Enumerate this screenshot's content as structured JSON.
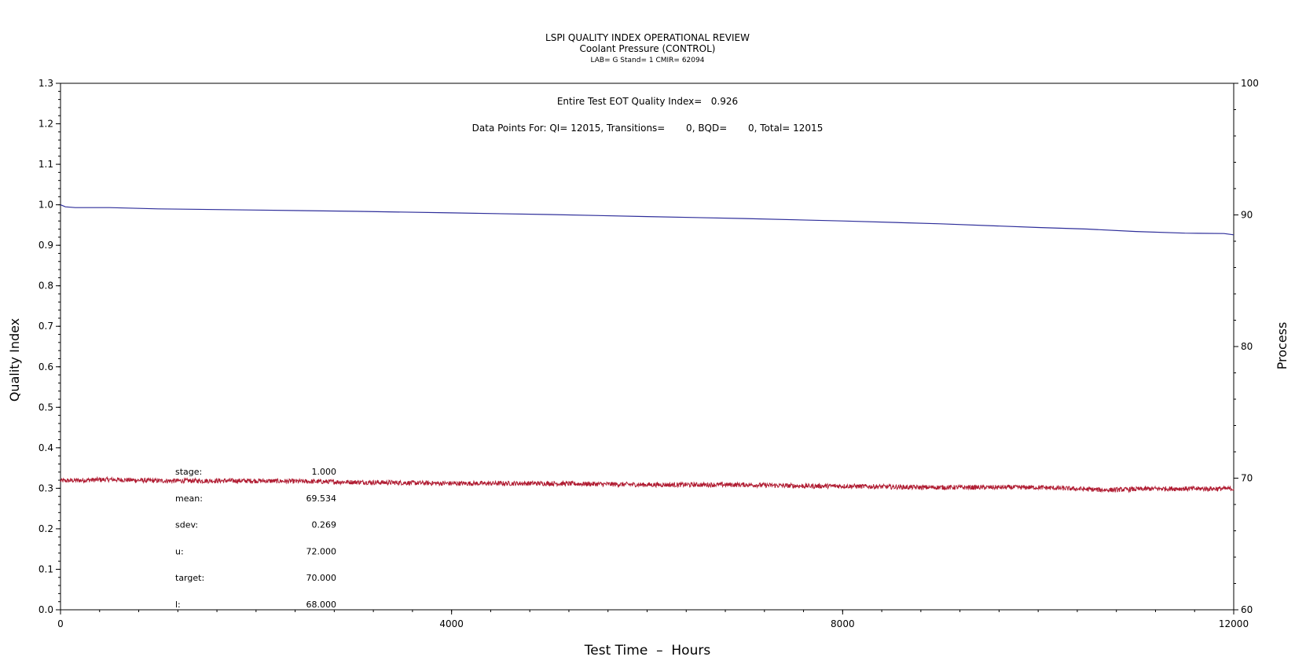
{
  "chart_data": {
    "type": "line",
    "title": "LSPI QUALITY INDEX OPERATIONAL REVIEW",
    "subtitle": "Coolant Pressure (CONTROL)",
    "subsubtitle": "LAB= G Stand= 1 CMIR= 62094",
    "annotation1": "Entire Test EOT Quality Index=   0.926",
    "annotation2": "Data Points For: QI= 12015, Transitions=       0, BQD=       0, Total= 12015",
    "xlabel": "Test Time  –  Hours",
    "ylabel": "Quality Index",
    "y2label": "Process",
    "xlim": [
      0,
      12000
    ],
    "ylim": [
      0,
      1.3
    ],
    "y2lim": [
      60,
      100
    ],
    "xticks": [
      0,
      4000,
      8000,
      12000
    ],
    "xtick_labels": [
      "0",
      "4000",
      "8000",
      "12000"
    ],
    "yticks": [
      0.0,
      0.1,
      0.2,
      0.3,
      0.4,
      0.5,
      0.6,
      0.7,
      0.8,
      0.9,
      1.0,
      1.1,
      1.2,
      1.3
    ],
    "ytick_labels": [
      "0.0",
      "0.1",
      "0.2",
      "0.3",
      "0.4",
      "0.5",
      "0.6",
      "0.7",
      "0.8",
      "0.9",
      "1.0",
      "1.1",
      "1.2",
      "1.3"
    ],
    "y2ticks": [
      60,
      70,
      80,
      90,
      100
    ],
    "y2tick_labels": [
      "60",
      "70",
      "80",
      "90",
      "100"
    ],
    "grid": false,
    "series": [
      {
        "role": "quality-index",
        "axis": "left",
        "color": "#2e2e9a",
        "x": [
          0,
          50,
          150,
          300,
          500,
          1000,
          2000,
          3000,
          4000,
          5000,
          6000,
          7000,
          8000,
          9000,
          10000,
          10500,
          11000,
          11500,
          11900,
          12000
        ],
        "y": [
          1.0,
          0.995,
          0.993,
          0.993,
          0.993,
          0.99,
          0.987,
          0.984,
          0.98,
          0.976,
          0.971,
          0.966,
          0.96,
          0.953,
          0.944,
          0.94,
          0.934,
          0.93,
          0.929,
          0.926
        ]
      },
      {
        "role": "process",
        "axis": "right",
        "color": "#b01c32",
        "x": [
          0,
          500,
          1000,
          2000,
          3000,
          4000,
          5000,
          6000,
          7000,
          7600,
          8000,
          8800,
          9500,
          10000,
          10700,
          11200,
          11600,
          12000
        ],
        "y": [
          69.8,
          69.9,
          69.8,
          69.8,
          69.7,
          69.6,
          69.6,
          69.5,
          69.5,
          69.4,
          69.4,
          69.3,
          69.3,
          69.3,
          69.1,
          69.2,
          69.2,
          69.2
        ],
        "noise": 0.18
      }
    ],
    "stats": [
      {
        "label": "stage:",
        "value": "1.000"
      },
      {
        "label": "mean:",
        "value": "69.534"
      },
      {
        "label": "sdev:",
        "value": "0.269"
      },
      {
        "label": "u:",
        "value": "72.000"
      },
      {
        "label": "target:",
        "value": "70.000"
      },
      {
        "label": "l:",
        "value": "68.000"
      }
    ]
  }
}
